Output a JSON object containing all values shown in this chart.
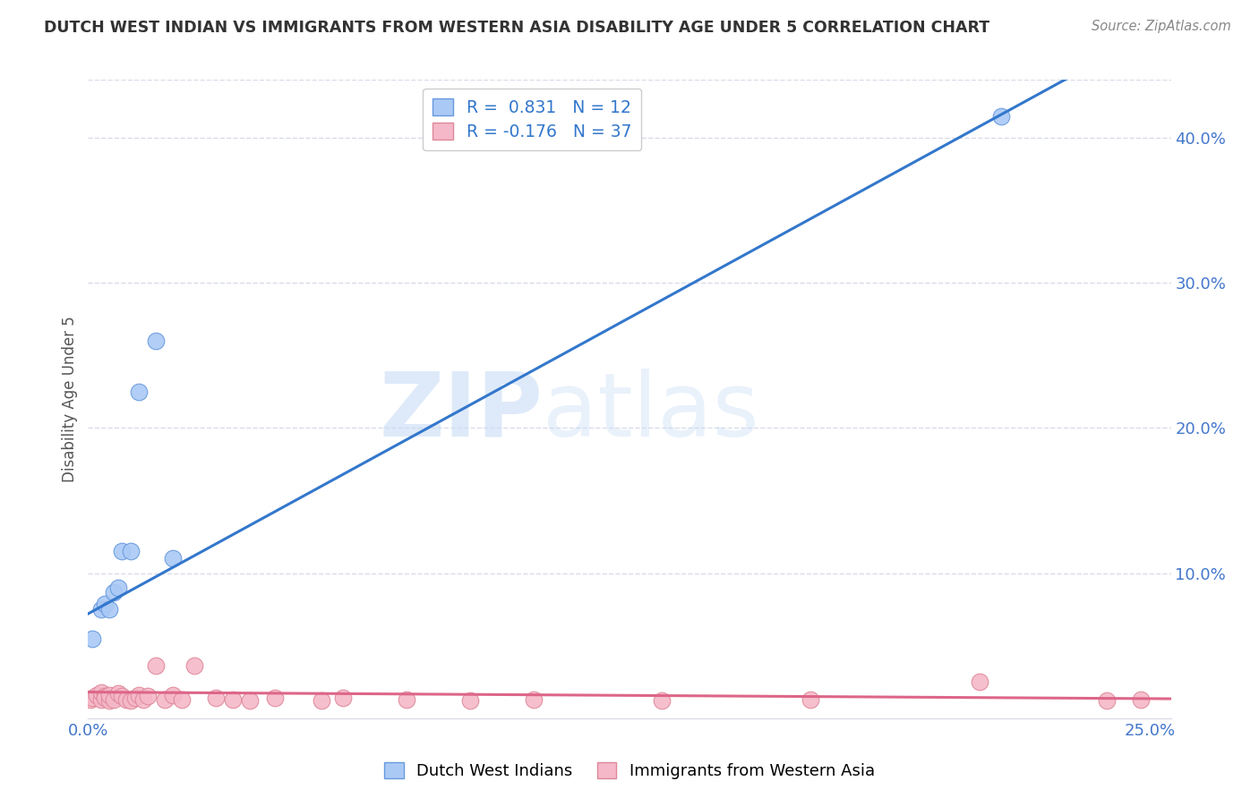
{
  "title": "DUTCH WEST INDIAN VS IMMIGRANTS FROM WESTERN ASIA DISABILITY AGE UNDER 5 CORRELATION CHART",
  "source": "Source: ZipAtlas.com",
  "ylabel": "Disability Age Under 5",
  "watermark_zip": "ZIP",
  "watermark_atlas": "atlas",
  "blue_series": {
    "label": "Dutch West Indians",
    "R": 0.831,
    "N": 12,
    "color": "#aac9f5",
    "edge_color": "#6699dd",
    "line_color": "#3377cc",
    "x": [
      0.001,
      0.003,
      0.004,
      0.005,
      0.006,
      0.007,
      0.008,
      0.01,
      0.012,
      0.016,
      0.02,
      0.215
    ],
    "y": [
      0.055,
      0.075,
      0.079,
      0.075,
      0.087,
      0.09,
      0.115,
      0.115,
      0.225,
      0.26,
      0.11,
      0.415
    ]
  },
  "pink_series": {
    "label": "Immigrants from Western Asia",
    "R": -0.176,
    "N": 37,
    "color": "#f5b8c8",
    "edge_color": "#dd8899",
    "line_color": "#dd6688",
    "x": [
      0.0005,
      0.001,
      0.002,
      0.003,
      0.003,
      0.004,
      0.004,
      0.005,
      0.005,
      0.006,
      0.007,
      0.008,
      0.009,
      0.01,
      0.011,
      0.012,
      0.013,
      0.014,
      0.016,
      0.018,
      0.02,
      0.022,
      0.025,
      0.03,
      0.034,
      0.038,
      0.044,
      0.055,
      0.06,
      0.075,
      0.09,
      0.105,
      0.135,
      0.17,
      0.21,
      0.24,
      0.248
    ],
    "y": [
      0.013,
      0.014,
      0.016,
      0.013,
      0.018,
      0.015,
      0.014,
      0.012,
      0.016,
      0.013,
      0.017,
      0.015,
      0.013,
      0.012,
      0.014,
      0.016,
      0.013,
      0.015,
      0.036,
      0.013,
      0.016,
      0.013,
      0.036,
      0.014,
      0.013,
      0.012,
      0.014,
      0.012,
      0.014,
      0.013,
      0.012,
      0.013,
      0.012,
      0.013,
      0.025,
      0.012,
      0.013
    ]
  },
  "xlim": [
    0.0,
    0.255
  ],
  "ylim": [
    0.0,
    0.44
  ],
  "yticks_right": [
    0.1,
    0.2,
    0.3,
    0.4
  ],
  "ytick_right_labels": [
    "10.0%",
    "20.0%",
    "30.0%",
    "40.0%"
  ],
  "xticks": [
    0.0,
    0.25
  ],
  "xtick_labels": [
    "0.0%",
    "25.0%"
  ],
  "background_color": "#ffffff",
  "grid_color": "#d8dce8",
  "title_color": "#333333",
  "axis_label_color": "#4477cc",
  "legend_R_color": "#3377cc",
  "legend_N_color": "#3377cc",
  "blue_line_intercept": 0.072,
  "blue_line_slope": 1.6,
  "pink_line_intercept": 0.018,
  "pink_line_slope": -0.018
}
